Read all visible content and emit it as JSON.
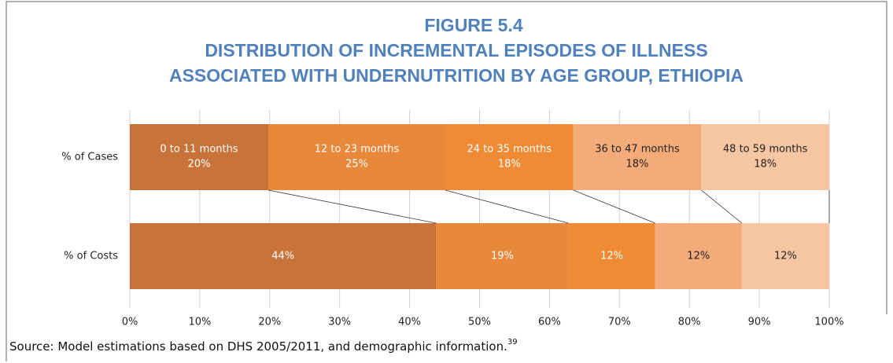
{
  "chart_data": {
    "type": "stacked_barh",
    "title": "FIGURE 5.4",
    "subtitle": [
      "DISTRIBUTION OF INCREMENTAL EPISODES OF ILLNESS",
      "ASSOCIATED WITH UNDERNUTRITION BY AGE GROUP, ETHIOPIA"
    ],
    "categories": [
      "% of Cases",
      "% of Costs"
    ],
    "series": [
      {
        "name": "0 to 11 months",
        "color": "#c8733a",
        "values": [
          19.8,
          43.8
        ],
        "value_labels": [
          "20%",
          "44%"
        ]
      },
      {
        "name": "12 to 23 months",
        "color": "#e8883a",
        "values": [
          25.3,
          18.9
        ],
        "value_labels": [
          "25%",
          "19%"
        ]
      },
      {
        "name": "24 to 35 months",
        "color": "#f08b35",
        "values": [
          18.3,
          12.4
        ],
        "value_labels": [
          "18%",
          "12%"
        ]
      },
      {
        "name": "36 to 47 months",
        "color": "#f4ab7a",
        "values": [
          18.3,
          12.4
        ],
        "value_labels": [
          "18%",
          "12%"
        ]
      },
      {
        "name": "48 to 59 months",
        "color": "#f6c6a3",
        "values": [
          18.3,
          12.5
        ],
        "value_labels": [
          "18%",
          "12%"
        ]
      }
    ],
    "xlim": [
      0,
      100
    ],
    "xticks": [
      {
        "value": 0,
        "label": "0%"
      },
      {
        "value": 10,
        "label": "10%"
      },
      {
        "value": 20,
        "label": "20%"
      },
      {
        "value": 30,
        "label": "30%"
      },
      {
        "value": 40,
        "label": "40%"
      },
      {
        "value": 50,
        "label": "50%"
      },
      {
        "value": 60,
        "label": "60%"
      },
      {
        "value": 70,
        "label": "70%"
      },
      {
        "value": 80,
        "label": "80%"
      },
      {
        "value": 90,
        "label": "90%"
      },
      {
        "value": 100,
        "label": "100%"
      }
    ],
    "grid": true,
    "source": "Source: Model estimations based on DHS 2005/2011, and demographic information.",
    "source_note": "39"
  }
}
